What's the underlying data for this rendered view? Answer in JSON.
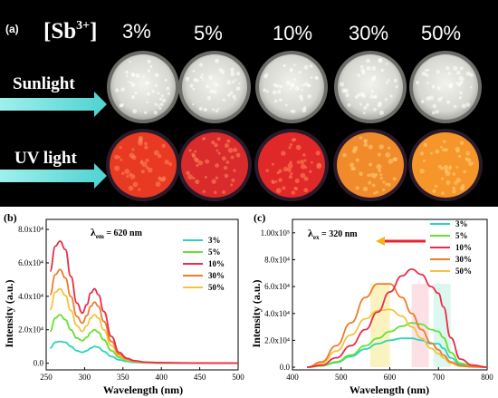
{
  "photo": {
    "panel_tag": "(a)",
    "dopant_label": "[Sb",
    "dopant_sup": "3+",
    "dopant_close": "]",
    "concentrations": [
      "3%",
      "5%",
      "10%",
      "30%",
      "50%"
    ],
    "row1_label": "Sunlight",
    "row2_label": "UV light",
    "uv_colors": [
      "#e83a22",
      "#d92a2c",
      "#e02828",
      "#f08a2a",
      "#f5952a"
    ]
  },
  "chart_data": [
    {
      "type": "line",
      "panel": "(b)",
      "annotation_main": "λ",
      "annotation_sub": "em",
      "annotation_rest": " = 620 nm",
      "xlabel": "Wavelength (nm)",
      "ylabel": "Intensity (a.u.)",
      "xlim": [
        250,
        500
      ],
      "ylim": [
        -4000,
        86000
      ],
      "xticks": [
        250,
        300,
        350,
        400,
        450,
        500
      ],
      "yticks": [
        0,
        20000,
        40000,
        60000,
        80000
      ],
      "ytick_labels": [
        "0.0",
        "2.0x10⁴",
        "4.0x10⁴",
        "6.0x10⁴",
        "8.0x10⁴"
      ],
      "legend_position": "top-right",
      "x": [
        255,
        262,
        268,
        275,
        282,
        290,
        297,
        303,
        308,
        313,
        318,
        325,
        335,
        345,
        355,
        365,
        380,
        400,
        450,
        500
      ],
      "series": [
        {
          "name": "3%",
          "color": "#2bd4bb",
          "values": [
            9000,
            12500,
            13000,
            12500,
            10000,
            7500,
            6500,
            7500,
            9000,
            10000,
            9500,
            7000,
            4000,
            2000,
            1000,
            500,
            200,
            100,
            0,
            0
          ]
        },
        {
          "name": "5%",
          "color": "#66e033",
          "values": [
            19000,
            27000,
            29000,
            26000,
            20000,
            15000,
            13500,
            15500,
            18500,
            20000,
            18500,
            14000,
            7500,
            3500,
            1800,
            900,
            400,
            200,
            100,
            0
          ]
        },
        {
          "name": "10%",
          "color": "#e82d4a",
          "values": [
            55000,
            70000,
            73000,
            68000,
            52000,
            36000,
            30000,
            35000,
            42000,
            44500,
            41000,
            31000,
            16000,
            6500,
            3000,
            1500,
            600,
            300,
            100,
            0
          ]
        },
        {
          "name": "30%",
          "color": "#f07c2b",
          "values": [
            41000,
            53000,
            56000,
            51000,
            40000,
            28000,
            24000,
            28500,
            34000,
            36500,
            34000,
            25000,
            13000,
            5500,
            2500,
            1200,
            500,
            200,
            100,
            0
          ]
        },
        {
          "name": "50%",
          "color": "#f2c43f",
          "values": [
            32000,
            42500,
            44500,
            40500,
            31500,
            22500,
            19000,
            22500,
            27000,
            29000,
            27000,
            20000,
            10500,
            4500,
            2000,
            1000,
            400,
            200,
            100,
            0
          ]
        }
      ]
    },
    {
      "type": "line",
      "panel": "(c)",
      "annotation_main": "λ",
      "annotation_sub": "ex",
      "annotation_rest": " = 320 nm",
      "xlabel": "Wavelength (nm)",
      "ylabel": "Intensity (a.u.)",
      "xlim": [
        400,
        800
      ],
      "ylim": [
        -2000,
        110000
      ],
      "xticks": [
        400,
        500,
        600,
        700,
        800
      ],
      "yticks": [
        0,
        20000,
        40000,
        60000,
        80000,
        100000
      ],
      "ytick_labels": [
        "0.0",
        "2.0x10⁴",
        "4.0x10⁴",
        "6.0x10⁴",
        "8.0x10⁴",
        "1.00x10⁵"
      ],
      "legend_position": "top-right",
      "x": [
        430,
        460,
        490,
        520,
        550,
        575,
        600,
        625,
        645,
        665,
        685,
        700,
        710,
        725,
        745,
        770,
        800
      ],
      "series": [
        {
          "name": "3%",
          "color": "#2bd4bb",
          "values": [
            0,
            1000,
            3500,
            8000,
            13500,
            17500,
            20000,
            21500,
            21500,
            20000,
            17500,
            17500,
            14000,
            7000,
            2000,
            500,
            0
          ]
        },
        {
          "name": "5%",
          "color": "#66e033",
          "values": [
            0,
            1000,
            4000,
            9000,
            16000,
            21500,
            26500,
            30500,
            33000,
            32000,
            28000,
            26500,
            22000,
            11000,
            3000,
            700,
            0
          ]
        },
        {
          "name": "10%",
          "color": "#e82d4a",
          "values": [
            0,
            1500,
            7000,
            16000,
            28000,
            41000,
            56000,
            68000,
            73000,
            69000,
            60000,
            55000,
            45000,
            22000,
            6000,
            1500,
            0
          ]
        },
        {
          "name": "30%",
          "color": "#f07c2b",
          "values": [
            0,
            4000,
            16000,
            33000,
            52000,
            62000,
            62000,
            52000,
            40000,
            28000,
            18000,
            13000,
            9000,
            4000,
            1000,
            300,
            0
          ]
        },
        {
          "name": "50%",
          "color": "#f2c43f",
          "values": [
            0,
            3000,
            12000,
            24000,
            36000,
            42000,
            43000,
            38000,
            30000,
            21500,
            14000,
            10000,
            7000,
            3000,
            800,
            200,
            0
          ]
        }
      ],
      "highlight_colors": [
        "#f5e98a",
        "#f7c7cf",
        "#bfeee4"
      ]
    }
  ]
}
